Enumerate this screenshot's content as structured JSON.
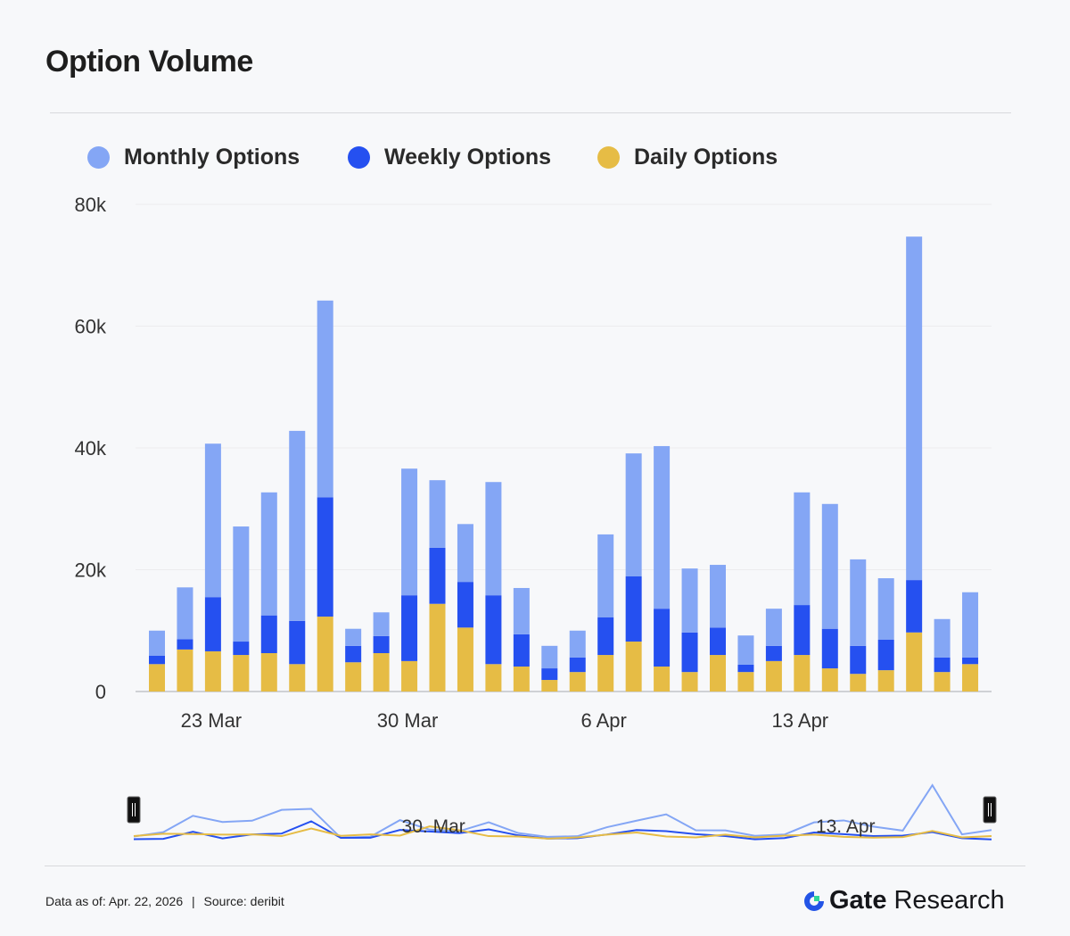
{
  "title": "Option Volume",
  "footer": {
    "as_of": "Data as of: Apr. 22, 2026",
    "separator": "|",
    "source": "Source:  deribit"
  },
  "logo": {
    "brand": "Gate",
    "suffix": "Research"
  },
  "colors": {
    "monthly": "#84a6f5",
    "weekly": "#2550f0",
    "daily": "#e6bc45",
    "logo_blue": "#2354e6",
    "logo_green": "#2fd79a"
  },
  "chart_data": {
    "type": "bar",
    "stacked": true,
    "title": "Option Volume",
    "legend_position": "top-left",
    "grid": true,
    "ylim": [
      0,
      80000
    ],
    "y_ticks": [
      "0",
      "20k",
      "40k",
      "60k",
      "80k"
    ],
    "x_ticks": [
      "23 Mar",
      "30 Mar",
      "6 Apr",
      "13 Apr"
    ],
    "navigator_labels": [
      "30. Mar",
      "13. Apr"
    ],
    "categories": [
      "21 Mar",
      "22 Mar",
      "23 Mar",
      "24 Mar",
      "25 Mar",
      "26 Mar",
      "27 Mar",
      "28 Mar",
      "29 Mar",
      "30 Mar",
      "31 Mar",
      "1 Apr",
      "2 Apr",
      "3 Apr",
      "4 Apr",
      "5 Apr",
      "6 Apr",
      "7 Apr",
      "8 Apr",
      "9 Apr",
      "10 Apr",
      "11 Apr",
      "12 Apr",
      "13 Apr",
      "14 Apr",
      "15 Apr",
      "16 Apr",
      "17 Apr",
      "18 Apr",
      "19 Apr"
    ],
    "series": [
      {
        "name": "Daily Options",
        "values": [
          4500,
          6900,
          6600,
          6000,
          6300,
          4500,
          12300,
          4800,
          6300,
          5000,
          14400,
          10500,
          4500,
          4100,
          1900,
          3200,
          6000,
          8200,
          4100,
          3200,
          6000,
          3200,
          5000,
          6000,
          3800,
          2900,
          3500,
          9700,
          3200,
          4500
        ]
      },
      {
        "name": "Weekly Options",
        "values": [
          1400,
          1700,
          8900,
          2200,
          6200,
          7100,
          19600,
          2700,
          2800,
          10800,
          9200,
          7500,
          11300,
          5300,
          1900,
          2400,
          6200,
          10700,
          9500,
          6500,
          4500,
          1200,
          2500,
          8200,
          6500,
          4600,
          5000,
          8600,
          2400,
          1100
        ]
      },
      {
        "name": "Monthly Options",
        "values": [
          4100,
          8500,
          25200,
          18900,
          20200,
          31200,
          32300,
          2800,
          3900,
          20800,
          11100,
          9500,
          18600,
          7600,
          3700,
          4400,
          13600,
          20200,
          26700,
          10500,
          10300,
          4800,
          6100,
          18500,
          20500,
          14200,
          10100,
          56400,
          6300,
          10700
        ]
      }
    ]
  }
}
